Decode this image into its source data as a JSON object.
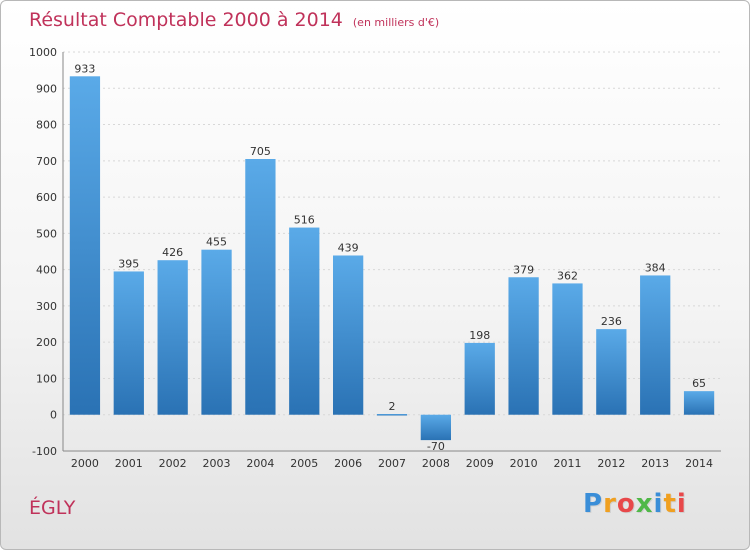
{
  "header": {
    "title": "Résultat Comptable 2000 à 2014",
    "unit": "(en milliers d'€)"
  },
  "commune": "ÉGLY",
  "logo": {
    "letters": [
      "P",
      "r",
      "o",
      "x",
      "i",
      "t",
      "i"
    ],
    "colors": [
      "#3a8ed8",
      "#f0a020",
      "#e8484a",
      "#50b848",
      "#3a8ed8",
      "#f0a020",
      "#e8484a"
    ]
  },
  "colors": {
    "title": "#c0325a",
    "bar_top": "#5aaae8",
    "bar_bottom": "#2a72b4",
    "grid": "#d8d8d8"
  },
  "chart_data": {
    "type": "bar",
    "title": "Résultat Comptable 2000 à 2014",
    "subtitle": "(en milliers d'€)",
    "xlabel": "",
    "ylabel": "",
    "categories": [
      "2000",
      "2001",
      "2002",
      "2003",
      "2004",
      "2005",
      "2006",
      "2007",
      "2008",
      "2009",
      "2010",
      "2011",
      "2012",
      "2013",
      "2014"
    ],
    "values": [
      933,
      395,
      426,
      455,
      705,
      516,
      439,
      2,
      -70,
      198,
      379,
      362,
      236,
      384,
      65
    ],
    "ylim": [
      -100,
      1000
    ],
    "yticks": [
      -100,
      0,
      100,
      200,
      300,
      400,
      500,
      600,
      700,
      800,
      900,
      1000
    ],
    "grid": true
  }
}
